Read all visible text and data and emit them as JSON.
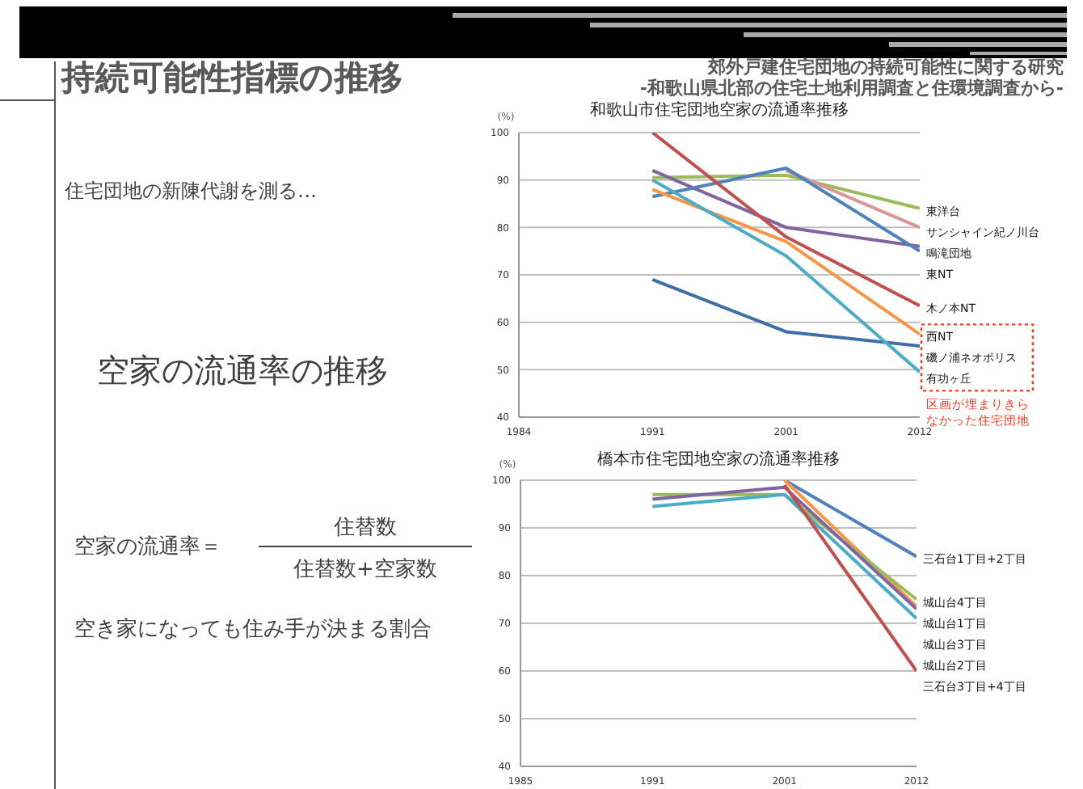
{
  "chart_data": [
    {
      "type": "other",
      "title": "持続可能性指標の推移",
      "subtitle": "郊外戸建住宅団地の持続可能性に関する研究",
      "annotations": [
        "-和歌山県北部の住宅土地利用調査と住環境調査から-",
        "住宅団地の新陳代謝を測る…",
        "空家の流通率の推移",
        "空家の流通率＝",
        "住替数",
        "住替数+空家数",
        "空き家になっても住み手が決まる割合"
      ]
    },
    {
      "type": "line",
      "title": "和歌山市住宅団地空家の流通率推移",
      "ylabel": "(%)",
      "categories": [
        "1984",
        "1991",
        "2001",
        "2012"
      ],
      "ylim": [
        40,
        100
      ],
      "yticks": [
        40,
        50,
        60,
        70,
        80,
        90,
        100
      ],
      "grid": "y",
      "annotations": [
        "区画が埋まりきらなかった住宅団地"
      ],
      "series": [
        {
          "name": "東洋台",
          "color": "#9bbb59",
          "values": [
            null,
            90.5,
            91,
            84
          ]
        },
        {
          "name": "サンシャイン紀ノ川台",
          "color": "#d99694",
          "values": [
            null,
            null,
            92,
            80
          ]
        },
        {
          "name": "鳴滝団地",
          "color": "#8064a2",
          "values": [
            null,
            92,
            80,
            76
          ]
        },
        {
          "name": "東NT",
          "color": "#4f81bd",
          "values": [
            null,
            86.5,
            92.5,
            75
          ]
        },
        {
          "name": "木ノ本NT",
          "color": "#c0504d",
          "values": [
            null,
            100,
            78,
            63.5
          ]
        },
        {
          "name": "西NT",
          "color": "#f79646",
          "values": [
            null,
            88,
            77,
            57.5
          ]
        },
        {
          "name": "磯ノ浦ネオポリス",
          "color": "#3f6fa8",
          "values": [
            null,
            69,
            58,
            55
          ]
        },
        {
          "name": "有功ヶ丘",
          "color": "#4bacc6",
          "values": [
            null,
            90,
            74,
            49.5
          ]
        }
      ]
    },
    {
      "type": "line",
      "title": "橋本市住宅団地空家の流通率推移",
      "ylabel": "(%)",
      "categories": [
        "1985",
        "1991",
        "2001",
        "2012"
      ],
      "ylim": [
        40,
        100
      ],
      "yticks": [
        40,
        50,
        60,
        70,
        80,
        90,
        100
      ],
      "grid": "y",
      "series": [
        {
          "name": "三石台1丁目+2丁目",
          "color": "#4f81bd",
          "values": [
            null,
            null,
            100,
            84
          ]
        },
        {
          "name": "城山台1丁目",
          "color": "#f79646",
          "values": [
            null,
            null,
            100,
            73.5
          ]
        },
        {
          "name": "城山台4丁目",
          "color": "#9bbb59",
          "values": [
            null,
            97,
            97,
            75
          ]
        },
        {
          "name": "城山台2丁目",
          "color": "#4bacc6",
          "values": [
            null,
            94.5,
            97,
            71
          ]
        },
        {
          "name": "城山台3丁目",
          "color": "#8064a2",
          "values": [
            null,
            96,
            98.5,
            73
          ]
        },
        {
          "name": "三石台3丁目+4丁目",
          "color": "#c0504d",
          "values": [
            null,
            null,
            99,
            60
          ]
        }
      ]
    }
  ]
}
